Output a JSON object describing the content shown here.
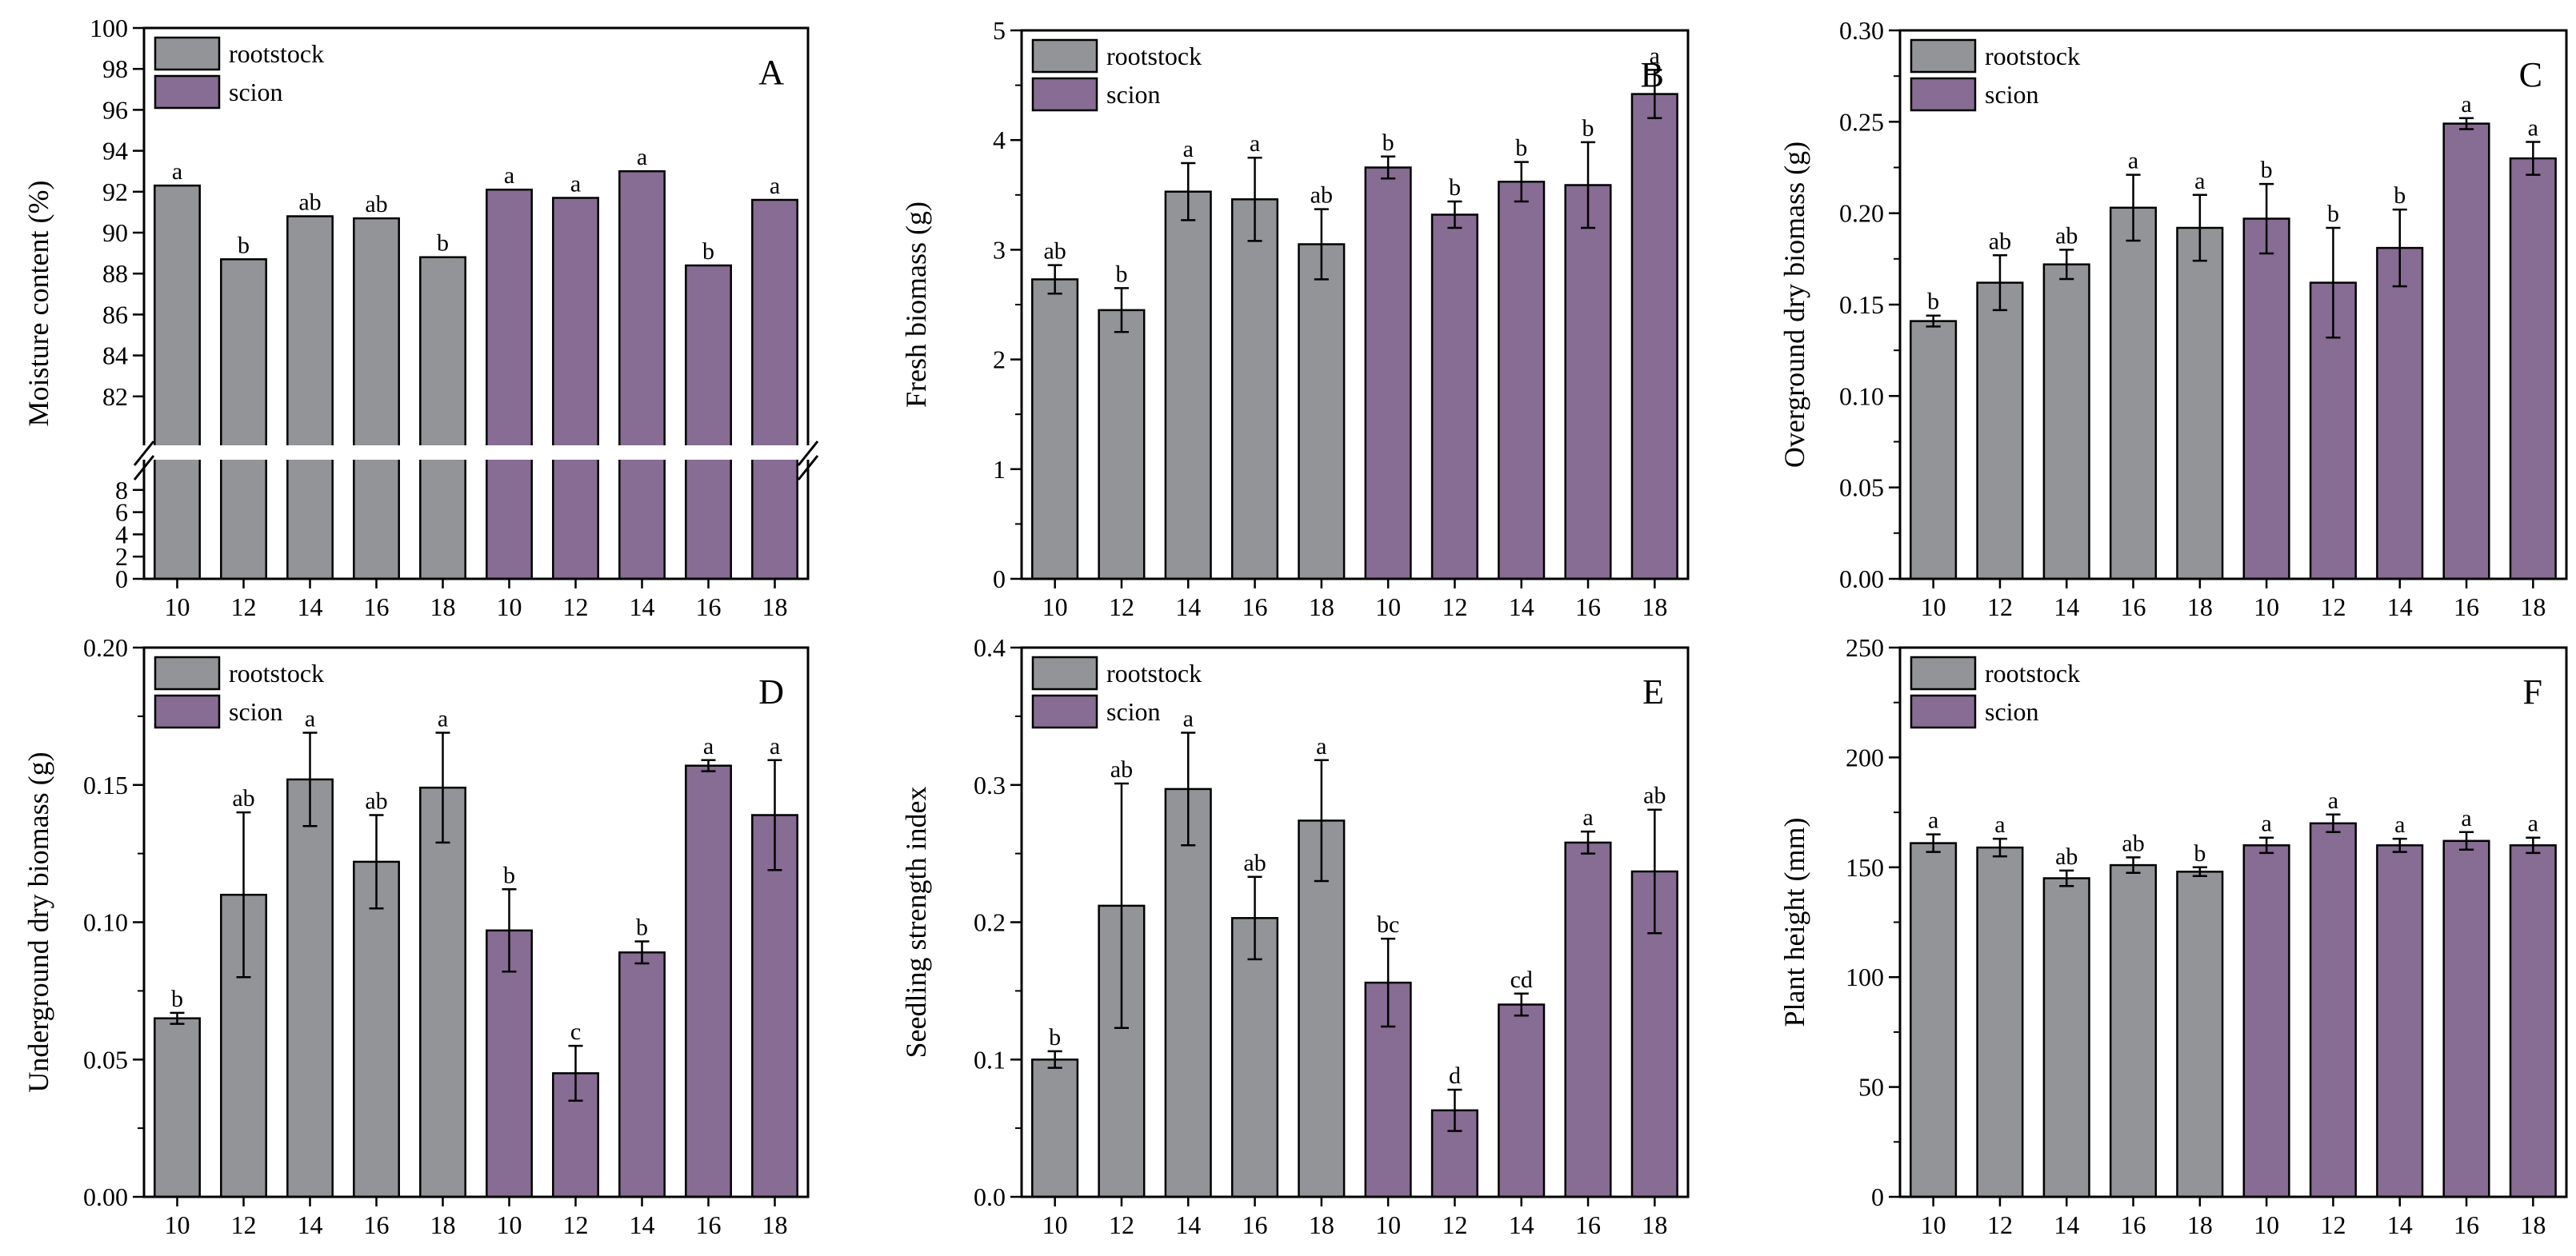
{
  "colors": {
    "rootstock": "#929497",
    "scion": "#876c93",
    "axis": "#000000",
    "break": "#ffffff"
  },
  "chart_data": [
    {
      "id": "A",
      "type": "bar",
      "panel_label": "A",
      "ylabel": "Moisture content (%)",
      "xlabel": "",
      "categories": [
        "10",
        "12",
        "14",
        "16",
        "18",
        "10",
        "12",
        "14",
        "16",
        "18"
      ],
      "groups": [
        "rootstock",
        "rootstock",
        "rootstock",
        "rootstock",
        "rootstock",
        "scion",
        "scion",
        "scion",
        "scion",
        "scion"
      ],
      "values": [
        92.3,
        88.7,
        90.8,
        90.7,
        88.8,
        92.1,
        91.7,
        93.0,
        88.4,
        91.6
      ],
      "errors": [
        0,
        0,
        0,
        0,
        0,
        0,
        0,
        0,
        0,
        0
      ],
      "sig": [
        "a",
        "b",
        "ab",
        "ab",
        "b",
        "a",
        "a",
        "a",
        "b",
        "a"
      ],
      "legend": [
        "rootstock",
        "scion"
      ],
      "y_break": {
        "lower_range": [
          0,
          10
        ],
        "upper_range": [
          80,
          100
        ]
      },
      "yticks_lower": [
        "0",
        "2",
        "4",
        "6",
        "8"
      ],
      "yticks_upper": [
        "82",
        "84",
        "86",
        "88",
        "90",
        "92",
        "94",
        "96",
        "98",
        "100"
      ]
    },
    {
      "id": "B",
      "type": "bar",
      "panel_label": "B",
      "ylabel": "Fresh biomass (g)",
      "xlabel": "",
      "categories": [
        "10",
        "12",
        "14",
        "16",
        "18",
        "10",
        "12",
        "14",
        "16",
        "18"
      ],
      "groups": [
        "rootstock",
        "rootstock",
        "rootstock",
        "rootstock",
        "rootstock",
        "scion",
        "scion",
        "scion",
        "scion",
        "scion"
      ],
      "values": [
        2.73,
        2.45,
        3.53,
        3.46,
        3.05,
        3.75,
        3.32,
        3.62,
        3.59,
        4.42
      ],
      "errors": [
        0.13,
        0.2,
        0.26,
        0.38,
        0.32,
        0.1,
        0.12,
        0.18,
        0.39,
        0.22
      ],
      "sig": [
        "ab",
        "b",
        "a",
        "a",
        "ab",
        "b",
        "b",
        "b",
        "b",
        "a"
      ],
      "legend": [
        "rootstock",
        "scion"
      ],
      "ylim": [
        0,
        5
      ],
      "yticks": [
        "0",
        "1",
        "2",
        "3",
        "4",
        "5"
      ]
    },
    {
      "id": "C",
      "type": "bar",
      "panel_label": "C",
      "ylabel": "Overground dry biomass (g)",
      "xlabel": "",
      "categories": [
        "10",
        "12",
        "14",
        "16",
        "18",
        "10",
        "12",
        "14",
        "16",
        "18"
      ],
      "groups": [
        "rootstock",
        "rootstock",
        "rootstock",
        "rootstock",
        "rootstock",
        "scion",
        "scion",
        "scion",
        "scion",
        "scion"
      ],
      "values": [
        0.141,
        0.162,
        0.172,
        0.203,
        0.192,
        0.197,
        0.162,
        0.181,
        0.249,
        0.23
      ],
      "errors": [
        0.003,
        0.015,
        0.008,
        0.018,
        0.018,
        0.019,
        0.03,
        0.021,
        0.003,
        0.009
      ],
      "sig": [
        "b",
        "ab",
        "ab",
        "a",
        "a",
        "b",
        "b",
        "b",
        "a",
        "a"
      ],
      "legend": [
        "rootstock",
        "scion"
      ],
      "ylim": [
        0,
        0.3
      ],
      "yticks": [
        "0.00",
        "0.05",
        "0.10",
        "0.15",
        "0.20",
        "0.25",
        "0.30"
      ]
    },
    {
      "id": "D",
      "type": "bar",
      "panel_label": "D",
      "ylabel": "Underground dry biomass (g)",
      "xlabel": "",
      "categories": [
        "10",
        "12",
        "14",
        "16",
        "18",
        "10",
        "12",
        "14",
        "16",
        "18"
      ],
      "groups": [
        "rootstock",
        "rootstock",
        "rootstock",
        "rootstock",
        "rootstock",
        "scion",
        "scion",
        "scion",
        "scion",
        "scion"
      ],
      "values": [
        0.065,
        0.11,
        0.152,
        0.122,
        0.149,
        0.097,
        0.045,
        0.089,
        0.157,
        0.139
      ],
      "errors": [
        0.002,
        0.03,
        0.017,
        0.017,
        0.02,
        0.015,
        0.01,
        0.004,
        0.002,
        0.02
      ],
      "sig": [
        "b",
        "ab",
        "a",
        "ab",
        "a",
        "b",
        "c",
        "b",
        "a",
        "a"
      ],
      "legend": [
        "rootstock",
        "scion"
      ],
      "ylim": [
        0,
        0.2
      ],
      "yticks": [
        "0.00",
        "0.05",
        "0.10",
        "0.15",
        "0.20"
      ]
    },
    {
      "id": "E",
      "type": "bar",
      "panel_label": "E",
      "ylabel": "Seedling strength index",
      "xlabel": "",
      "categories": [
        "10",
        "12",
        "14",
        "16",
        "18",
        "10",
        "12",
        "14",
        "16",
        "18"
      ],
      "groups": [
        "rootstock",
        "rootstock",
        "rootstock",
        "rootstock",
        "rootstock",
        "scion",
        "scion",
        "scion",
        "scion",
        "scion"
      ],
      "values": [
        0.1,
        0.212,
        0.297,
        0.203,
        0.274,
        0.156,
        0.063,
        0.14,
        0.258,
        0.237
      ],
      "errors": [
        0.006,
        0.089,
        0.041,
        0.03,
        0.044,
        0.032,
        0.015,
        0.008,
        0.008,
        0.045
      ],
      "sig": [
        "b",
        "ab",
        "a",
        "ab",
        "a",
        "bc",
        "d",
        "cd",
        "a",
        "ab"
      ],
      "legend": [
        "rootstock",
        "scion"
      ],
      "ylim": [
        0,
        0.4
      ],
      "yticks": [
        "0.0",
        "0.1",
        "0.2",
        "0.3",
        "0.4"
      ]
    },
    {
      "id": "F",
      "type": "bar",
      "panel_label": "F",
      "ylabel": "Plant height (mm)",
      "xlabel": "",
      "categories": [
        "10",
        "12",
        "14",
        "16",
        "18",
        "10",
        "12",
        "14",
        "16",
        "18"
      ],
      "groups": [
        "rootstock",
        "rootstock",
        "rootstock",
        "rootstock",
        "rootstock",
        "scion",
        "scion",
        "scion",
        "scion",
        "scion"
      ],
      "values": [
        161,
        159,
        145,
        151,
        148,
        160,
        170,
        160,
        162,
        160
      ],
      "errors": [
        4,
        4,
        3.5,
        3.5,
        2,
        3.5,
        4,
        3,
        4,
        3.5
      ],
      "sig": [
        "a",
        "a",
        "ab",
        "ab",
        "b",
        "a",
        "a",
        "a",
        "a",
        "a"
      ],
      "legend": [
        "rootstock",
        "scion"
      ],
      "ylim": [
        0,
        250
      ],
      "yticks": [
        "0",
        "50",
        "100",
        "150",
        "200",
        "250"
      ]
    }
  ]
}
